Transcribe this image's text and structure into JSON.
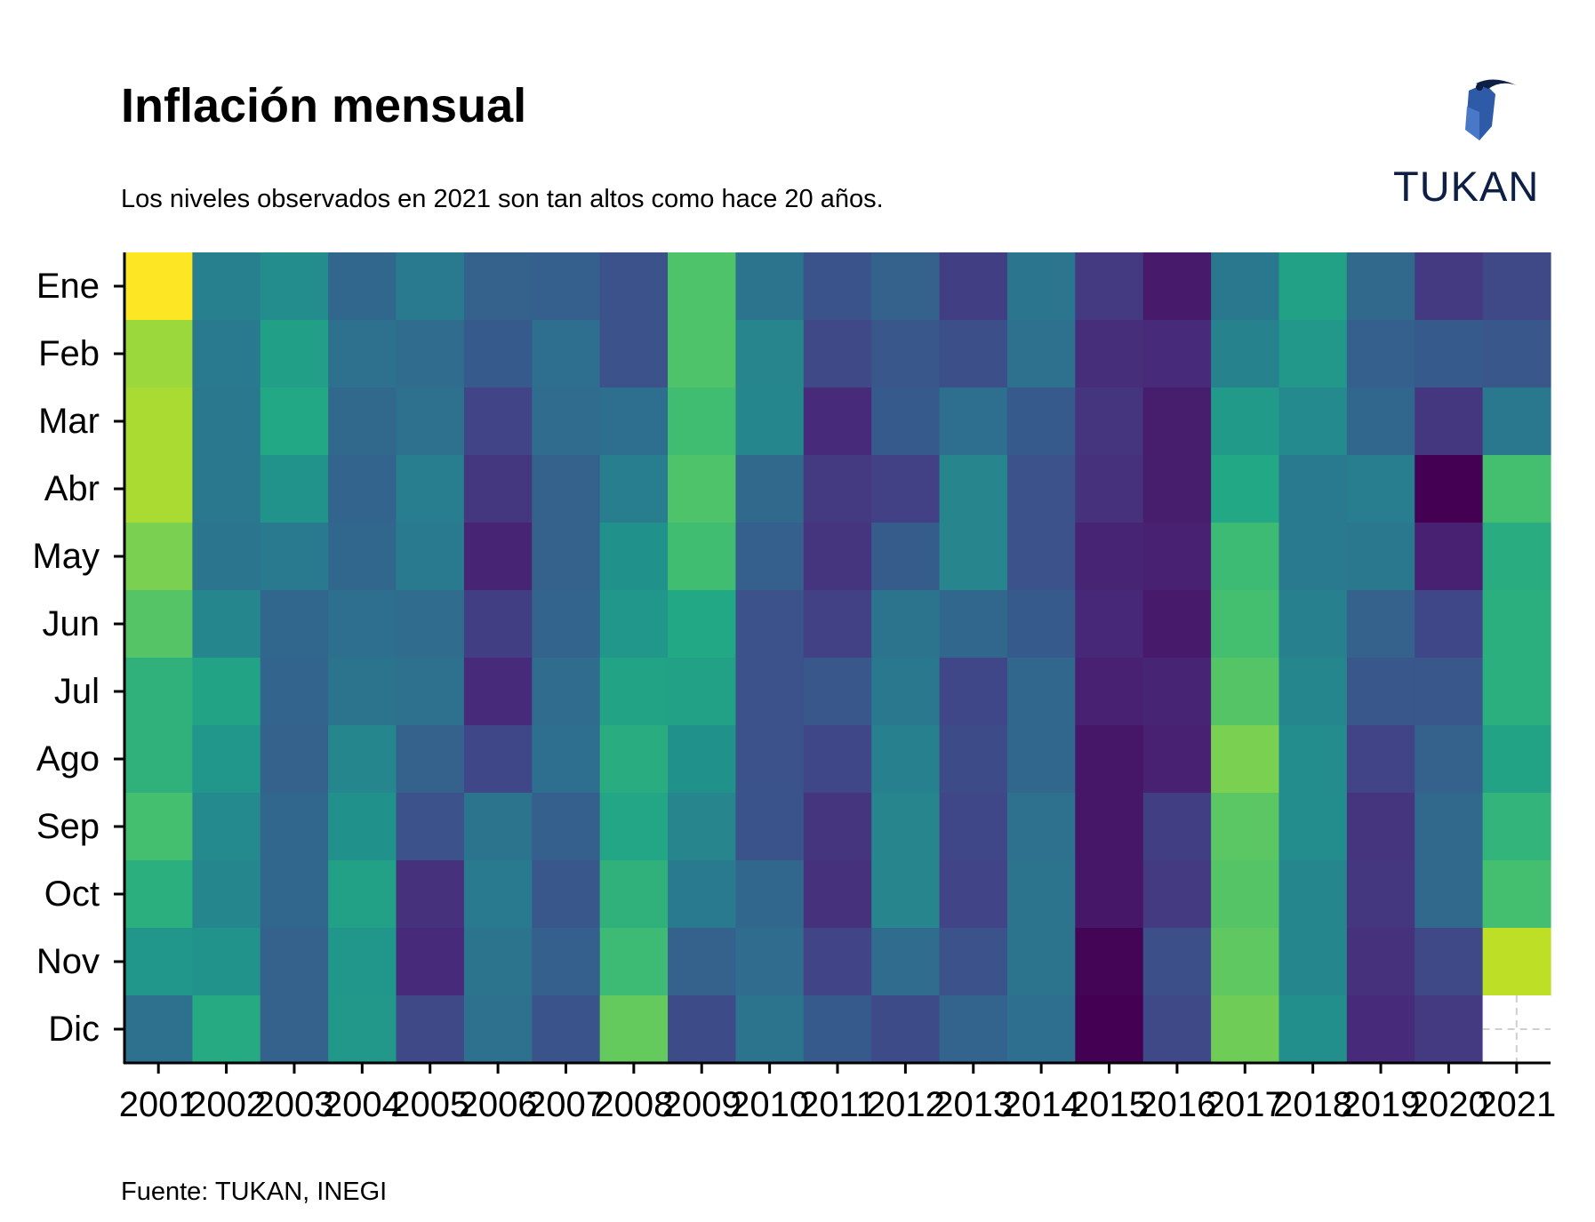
{
  "header": {
    "title": "Inflación mensual",
    "subtitle": "Los niveles observados en 2021 son tan altos como hace 20 años."
  },
  "footer": {
    "source": "Fuente: TUKAN, INEGI"
  },
  "logo": {
    "text": "TUKAN",
    "icon": "toucan-icon",
    "color": "#0d1f45",
    "accent": "#2f5aa8"
  },
  "colors": {
    "colormap": "viridis",
    "missing": "#ffffff"
  },
  "chart_data": {
    "type": "heatmap",
    "title": "Inflación mensual",
    "x": [
      "2001",
      "2002",
      "2003",
      "2004",
      "2005",
      "2006",
      "2007",
      "2008",
      "2009",
      "2010",
      "2011",
      "2012",
      "2013",
      "2014",
      "2015",
      "2016",
      "2017",
      "2018",
      "2019",
      "2020",
      "2021"
    ],
    "y": [
      "Ene",
      "Feb",
      "Mar",
      "Abr",
      "May",
      "Jun",
      "Jul",
      "Ago",
      "Sep",
      "Oct",
      "Nov",
      "Dic"
    ],
    "colorscale_normalized": true,
    "values": [
      [
        1.0,
        0.43,
        0.48,
        0.33,
        0.41,
        0.31,
        0.3,
        0.25,
        0.72,
        0.38,
        0.26,
        0.31,
        0.18,
        0.39,
        0.17,
        0.07,
        0.4,
        0.57,
        0.34,
        0.17,
        0.22
      ],
      [
        0.85,
        0.41,
        0.56,
        0.37,
        0.35,
        0.28,
        0.36,
        0.25,
        0.72,
        0.45,
        0.22,
        0.27,
        0.24,
        0.37,
        0.13,
        0.12,
        0.44,
        0.53,
        0.3,
        0.28,
        0.27
      ],
      [
        0.87,
        0.4,
        0.6,
        0.34,
        0.37,
        0.2,
        0.35,
        0.36,
        0.69,
        0.46,
        0.12,
        0.28,
        0.36,
        0.28,
        0.15,
        0.08,
        0.54,
        0.47,
        0.33,
        0.16,
        0.4
      ],
      [
        0.87,
        0.4,
        0.51,
        0.32,
        0.42,
        0.16,
        0.31,
        0.42,
        0.72,
        0.34,
        0.17,
        0.19,
        0.45,
        0.25,
        0.14,
        0.08,
        0.6,
        0.41,
        0.42,
        0.0,
        0.7
      ],
      [
        0.8,
        0.39,
        0.41,
        0.33,
        0.41,
        0.1,
        0.31,
        0.5,
        0.69,
        0.3,
        0.15,
        0.29,
        0.45,
        0.25,
        0.1,
        0.09,
        0.68,
        0.41,
        0.4,
        0.09,
        0.62
      ],
      [
        0.73,
        0.46,
        0.33,
        0.36,
        0.35,
        0.18,
        0.32,
        0.52,
        0.6,
        0.25,
        0.19,
        0.38,
        0.33,
        0.28,
        0.11,
        0.07,
        0.7,
        0.43,
        0.31,
        0.21,
        0.63
      ],
      [
        0.64,
        0.58,
        0.32,
        0.38,
        0.37,
        0.12,
        0.35,
        0.58,
        0.57,
        0.25,
        0.27,
        0.4,
        0.21,
        0.33,
        0.09,
        0.1,
        0.73,
        0.46,
        0.27,
        0.27,
        0.63
      ],
      [
        0.64,
        0.52,
        0.31,
        0.46,
        0.31,
        0.21,
        0.36,
        0.62,
        0.5,
        0.25,
        0.21,
        0.43,
        0.23,
        0.33,
        0.06,
        0.09,
        0.8,
        0.48,
        0.2,
        0.31,
        0.58
      ],
      [
        0.7,
        0.47,
        0.33,
        0.5,
        0.25,
        0.38,
        0.3,
        0.59,
        0.45,
        0.26,
        0.15,
        0.45,
        0.21,
        0.37,
        0.06,
        0.18,
        0.74,
        0.48,
        0.15,
        0.34,
        0.65
      ],
      [
        0.63,
        0.46,
        0.33,
        0.57,
        0.14,
        0.41,
        0.27,
        0.64,
        0.41,
        0.33,
        0.14,
        0.45,
        0.2,
        0.38,
        0.06,
        0.17,
        0.73,
        0.46,
        0.16,
        0.34,
        0.7
      ],
      [
        0.52,
        0.51,
        0.31,
        0.52,
        0.12,
        0.38,
        0.3,
        0.68,
        0.31,
        0.35,
        0.2,
        0.35,
        0.25,
        0.38,
        0.01,
        0.24,
        0.75,
        0.46,
        0.14,
        0.22,
        0.9
      ],
      [
        0.37,
        0.61,
        0.31,
        0.53,
        0.22,
        0.37,
        0.26,
        0.76,
        0.23,
        0.38,
        0.28,
        0.23,
        0.32,
        0.36,
        0.0,
        0.22,
        0.78,
        0.49,
        0.12,
        0.17,
        null
      ]
    ],
    "grid": false
  }
}
